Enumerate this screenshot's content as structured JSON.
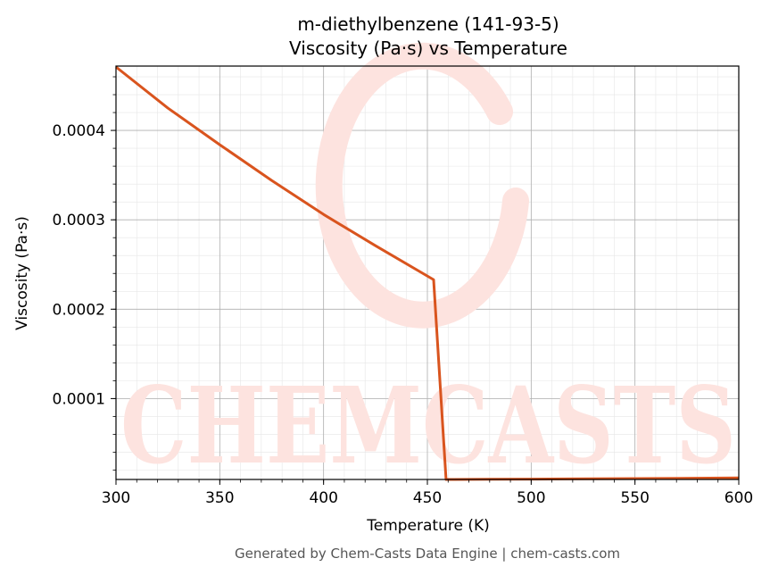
{
  "chart_data": {
    "type": "line",
    "title": "m-diethylbenzene (141-93-5)",
    "subtitle": "Viscosity (Pa·s) vs Temperature",
    "xlabel": "Temperature (K)",
    "ylabel": "Viscosity (Pa·s)",
    "xlim": [
      300,
      600
    ],
    "ylim": [
      9.5e-06,
      0.000472
    ],
    "xticks": [
      "300",
      "350",
      "400",
      "450",
      "500",
      "550",
      "600"
    ],
    "yticks": [
      "0.0001",
      "0.0002",
      "0.0003",
      "0.0004"
    ],
    "grid": true,
    "series": [
      {
        "color": "#d9541e",
        "x": [
          300,
          325,
          350,
          375,
          400,
          425,
          453,
          459,
          480,
          500,
          550,
          600
        ],
        "y": [
          0.000471,
          0.000425,
          0.000384,
          0.000344,
          0.000306,
          0.000271,
          0.000233,
          9.5e-06,
          9.7e-06,
          9.9e-06,
          1.05e-05,
          1.12e-05
        ]
      }
    ],
    "colors": {
      "line": "#d9541e",
      "watermark": "#fde3df",
      "grid_major": "#b0b0b0",
      "grid_minor": "#e6e6e6"
    }
  },
  "watermark": {
    "text": "CHEMCASTS"
  },
  "footer": {
    "text": "Generated by Chem-Casts Data Engine | chem-casts.com"
  }
}
